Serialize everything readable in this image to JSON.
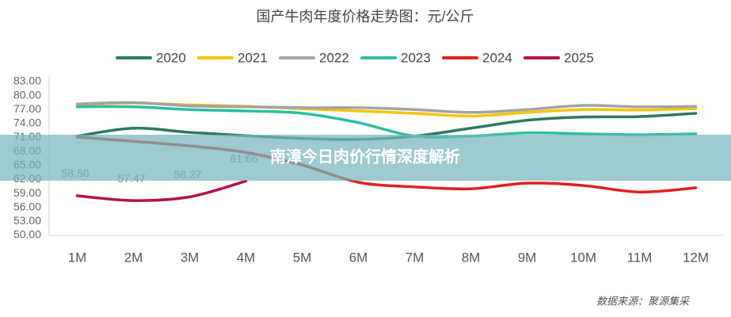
{
  "chart_data": {
    "type": "line",
    "title": "国产牛肉年度价格走势图：元/公斤",
    "source": "数据来源：聚源集采",
    "categories": [
      "1M",
      "2M",
      "3M",
      "4M",
      "5M",
      "6M",
      "7M",
      "8M",
      "9M",
      "10M",
      "11M",
      "12M"
    ],
    "series": [
      {
        "name": "2020",
        "color": "#2e7a5e",
        "values": [
          71.3,
          73.0,
          72.1,
          71.4,
          70.8,
          70.6,
          71.3,
          73.0,
          74.7,
          75.4,
          75.5,
          76.2
        ]
      },
      {
        "name": "2021",
        "color": "#f5c400",
        "values": [
          78.0,
          78.4,
          78.0,
          77.7,
          77.2,
          76.7,
          76.2,
          75.6,
          76.4,
          77.0,
          76.9,
          77.2
        ]
      },
      {
        "name": "2022",
        "color": "#a3a3a3",
        "values": [
          78.2,
          78.5,
          77.8,
          77.6,
          77.4,
          77.4,
          77.0,
          76.4,
          77.0,
          77.9,
          77.6,
          77.7
        ]
      },
      {
        "name": "2023",
        "color": "#2bbfa0",
        "values": [
          77.6,
          77.6,
          77.0,
          76.7,
          76.2,
          74.2,
          71.3,
          71.3,
          72.0,
          71.8,
          71.6,
          71.8
        ]
      },
      {
        "name": "2024",
        "color": "#e02020",
        "values": [
          71.1,
          70.2,
          69.2,
          67.8,
          65.1,
          61.4,
          60.4,
          60.0,
          61.2,
          60.7,
          59.3,
          60.2
        ]
      },
      {
        "name": "2025",
        "color": "#b5124a",
        "values": [
          58.5,
          57.47,
          58.27,
          61.66,
          null,
          null,
          null,
          null,
          null,
          null,
          null,
          null
        ],
        "value_labels": [
          "58.50",
          "57.47",
          "58.27",
          "61.66",
          null,
          null,
          null,
          null,
          null,
          null,
          null,
          null
        ]
      }
    ],
    "ylim": [
      50,
      83
    ],
    "yticks": [
      {
        "value": 50,
        "label": "50.00"
      },
      {
        "value": 53,
        "label": "53.00"
      },
      {
        "value": 56,
        "label": "56.00"
      },
      {
        "value": 59,
        "label": "59.00"
      },
      {
        "value": 62,
        "label": "62.00"
      },
      {
        "value": 65,
        "label": "65.00"
      },
      {
        "value": 68,
        "label": "68.00"
      },
      {
        "value": 71,
        "label": "71.00"
      },
      {
        "value": 74,
        "label": "74.00"
      },
      {
        "value": 77,
        "label": "77.00"
      },
      {
        "value": 80,
        "label": "80.00"
      },
      {
        "value": 83,
        "label": "83.00"
      }
    ],
    "legend": "top",
    "grid": false
  },
  "banner": "南漳今日肉价行情深度解析"
}
